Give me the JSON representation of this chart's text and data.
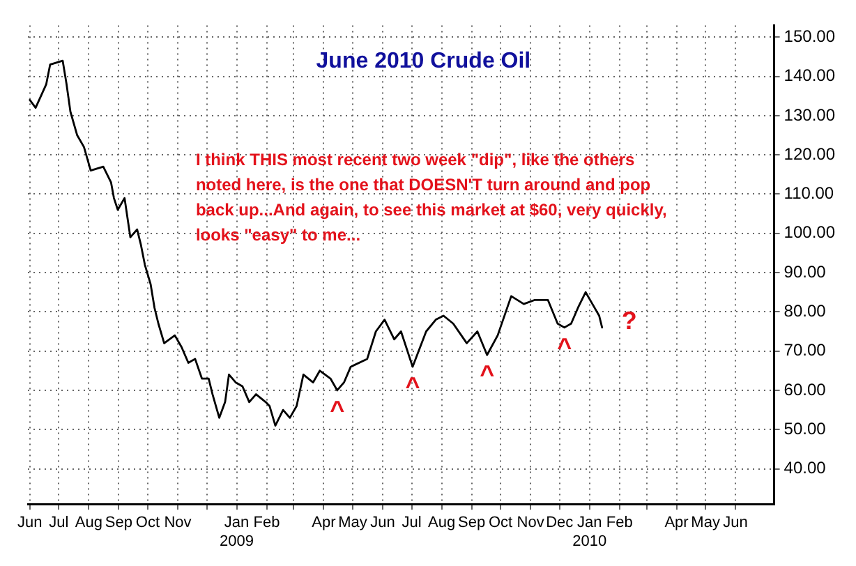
{
  "chart_data": {
    "type": "line",
    "title": "June 2010 Crude Oil",
    "series": [
      {
        "color": "#000000",
        "x": [
          "2008-06-15",
          "2008-06-21",
          "2008-07-02",
          "2008-07-06",
          "2008-07-19",
          "2008-07-23",
          "2008-07-27",
          "2008-08-03",
          "2008-08-10",
          "2008-08-17",
          "2008-08-30",
          "2008-09-07",
          "2008-09-10",
          "2008-09-14",
          "2008-09-21",
          "2008-09-24",
          "2008-09-27",
          "2008-10-04",
          "2008-10-08",
          "2008-10-12",
          "2008-10-18",
          "2008-10-22",
          "2008-10-26",
          "2008-11-01",
          "2008-11-12",
          "2008-11-19",
          "2008-11-26",
          "2008-12-03",
          "2008-12-10",
          "2008-12-17",
          "2008-12-21",
          "2008-12-28",
          "2009-01-03",
          "2009-01-07",
          "2009-01-14",
          "2009-01-21",
          "2009-01-28",
          "2009-02-04",
          "2009-02-14",
          "2009-02-18",
          "2009-02-24",
          "2009-03-04",
          "2009-03-11",
          "2009-03-18",
          "2009-03-25",
          "2009-04-04",
          "2009-04-11",
          "2009-04-22",
          "2009-04-29",
          "2009-05-06",
          "2009-05-13",
          "2009-05-30",
          "2009-06-08",
          "2009-06-17",
          "2009-06-27",
          "2009-07-04",
          "2009-07-16",
          "2009-07-30",
          "2009-08-09",
          "2009-08-17",
          "2009-08-27",
          "2009-09-10",
          "2009-09-21",
          "2009-10-01",
          "2009-10-12",
          "2009-10-26",
          "2009-11-08",
          "2009-11-19",
          "2009-12-03",
          "2009-12-13",
          "2009-12-20",
          "2009-12-27",
          "2010-01-03",
          "2010-01-11",
          "2010-01-18",
          "2010-01-25",
          "2010-01-28"
        ],
        "values": [
          134,
          132,
          138,
          143,
          144,
          138,
          131,
          125,
          122,
          116,
          117,
          113,
          109,
          106,
          109,
          104,
          99,
          101,
          97,
          92,
          87,
          81,
          77,
          72,
          74,
          71,
          67,
          68,
          63,
          63,
          59,
          53,
          57,
          64,
          62,
          61,
          57,
          59,
          57,
          56,
          51,
          55,
          53,
          56,
          64,
          62,
          65,
          63,
          60,
          62,
          66,
          68,
          75,
          78,
          73,
          75,
          66,
          75,
          78,
          79,
          77,
          72,
          75,
          69,
          74,
          84,
          82,
          83,
          83,
          77,
          76,
          77,
          81,
          85,
          82,
          79,
          76
        ]
      }
    ],
    "xlim": [
      "2008-06-13",
      "2010-07-25"
    ],
    "xticks": [
      {
        "value": "2008-06-15",
        "label": "Jun"
      },
      {
        "value": "2008-07-15",
        "label": "Jul"
      },
      {
        "value": "2008-08-15",
        "label": "Aug"
      },
      {
        "value": "2008-09-15",
        "label": "Sep"
      },
      {
        "value": "2008-10-15",
        "label": "Oct"
      },
      {
        "value": "2008-11-15",
        "label": "Nov"
      },
      {
        "value": "2008-12-15",
        "label": null
      },
      {
        "value": "2009-01-15",
        "label": "Jan\n2009"
      },
      {
        "value": "2009-02-15",
        "label": "Feb"
      },
      {
        "value": "2009-03-15",
        "label": null
      },
      {
        "value": "2009-04-15",
        "label": "Apr"
      },
      {
        "value": "2009-05-15",
        "label": "May"
      },
      {
        "value": "2009-06-15",
        "label": "Jun"
      },
      {
        "value": "2009-07-15",
        "label": "Jul"
      },
      {
        "value": "2009-08-15",
        "label": "Aug"
      },
      {
        "value": "2009-09-15",
        "label": "Sep"
      },
      {
        "value": "2009-10-15",
        "label": "Oct"
      },
      {
        "value": "2009-11-15",
        "label": "Nov"
      },
      {
        "value": "2009-12-15",
        "label": "Dec"
      },
      {
        "value": "2010-01-15",
        "label": "Jan\n2010"
      },
      {
        "value": "2010-02-15",
        "label": "Feb"
      },
      {
        "value": "2010-03-15",
        "label": null
      },
      {
        "value": "2010-04-15",
        "label": "Apr"
      },
      {
        "value": "2010-05-15",
        "label": "May"
      },
      {
        "value": "2010-06-15",
        "label": "Jun"
      }
    ],
    "ylim": [
      31,
      153
    ],
    "yticks": [
      {
        "value": 40,
        "label": "40.00"
      },
      {
        "value": 50,
        "label": "50.00"
      },
      {
        "value": 60,
        "label": "60.00"
      },
      {
        "value": 70,
        "label": "70.00"
      },
      {
        "value": 80,
        "label": "80.00"
      },
      {
        "value": 90,
        "label": "90.00"
      },
      {
        "value": 100,
        "label": "100.00"
      },
      {
        "value": 110,
        "label": "110.00"
      },
      {
        "value": 120,
        "label": "120.00"
      },
      {
        "value": 130,
        "label": "130.00"
      },
      {
        "value": 140,
        "label": "140.00"
      },
      {
        "value": 150,
        "label": "150.00"
      }
    ],
    "grid": true,
    "legend": false,
    "marker": "none",
    "annotations": [
      "I think THIS most recent two week \"dip\", like the others noted here, is the one that DOESN'T turn around and pop back up...And again, to see this market at $60, very quickly, looks \"easy\" to me...",
      {
        "text": "^",
        "x": "2009-04-29",
        "y": 60
      },
      {
        "text": "^",
        "x": "2009-07-16",
        "y": 66
      },
      {
        "text": "^",
        "x": "2009-10-01",
        "y": 69
      },
      {
        "text": "^",
        "x": "2009-12-20",
        "y": 76
      },
      {
        "text": "?",
        "x": "2010-01-28",
        "y": 76
      }
    ]
  }
}
